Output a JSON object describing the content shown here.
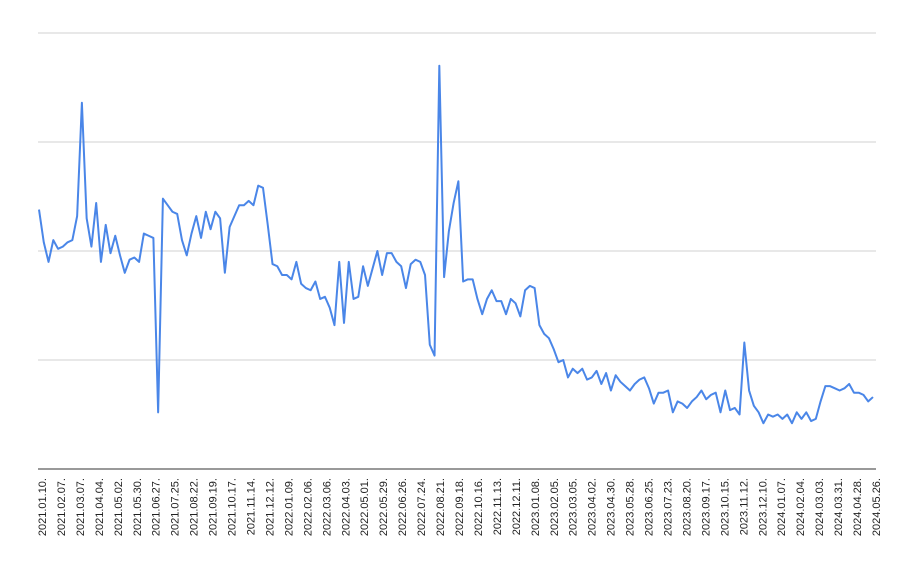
{
  "chart_data": {
    "type": "line",
    "title": "",
    "xlabel": "",
    "ylabel": "",
    "ylim": [
      0,
      100
    ],
    "grid": true,
    "legend": "none",
    "colors": {
      "line": "#4a86e8",
      "grid": "#d0d0d0",
      "axis": "#333333"
    },
    "x_ticks": [
      "2021.01.10.",
      "2021.02.07.",
      "2021.03.07.",
      "2021.04.04.",
      "2021.05.02.",
      "2021.05.30.",
      "2021.06.27.",
      "2021.07.25.",
      "2021.08.22.",
      "2021.09.19.",
      "2021.10.17.",
      "2021.11.14.",
      "2021.12.12.",
      "2022.01.09.",
      "2022.02.06.",
      "2022.03.06.",
      "2022.04.03.",
      "2022.05.01.",
      "2022.05.29.",
      "2022.06.26.",
      "2022.07.24.",
      "2022.08.21.",
      "2022.09.18.",
      "2022.10.16.",
      "2022.11.13.",
      "2022.12.11.",
      "2023.01.08.",
      "2023.02.05.",
      "2023.03.05.",
      "2023.04.02.",
      "2023.04.30.",
      "2023.05.28.",
      "2023.06.25.",
      "2023.07.23.",
      "2023.08.20.",
      "2023.09.17.",
      "2023.10.15.",
      "2023.11.12.",
      "2023.12.10.",
      "2024.01.07.",
      "2024.02.04.",
      "2024.03.03.",
      "2024.03.31.",
      "2024.04.28.",
      "2024.05.26."
    ],
    "series": [
      {
        "values": [
          59.5,
          52,
          47.5,
          52.5,
          50.5,
          51,
          52,
          52.5,
          58,
          84,
          57.5,
          51,
          61,
          47.5,
          56,
          49.5,
          53.5,
          49,
          45,
          48,
          48.5,
          47.5,
          54,
          53.5,
          53,
          13,
          62,
          60.5,
          59,
          58.5,
          52.5,
          49,
          54,
          58,
          53,
          59,
          55,
          59,
          57.5,
          45,
          55.5,
          58,
          60.5,
          60.5,
          61.5,
          60.5,
          65,
          64.5,
          56,
          47,
          46.5,
          44.5,
          44.5,
          43.5,
          47.5,
          42.5,
          41.5,
          41,
          43,
          39,
          39.5,
          37,
          33,
          47.5,
          33.5,
          47.5,
          39,
          39.5,
          46.5,
          42,
          46,
          50,
          44.5,
          49.5,
          49.5,
          47.5,
          46.5,
          41.5,
          47,
          48,
          47.5,
          44.5,
          28.5,
          26,
          92.5,
          44,
          54.5,
          61,
          66,
          43,
          43.5,
          43.5,
          39,
          35.5,
          39,
          41,
          38.5,
          38.5,
          35.5,
          39,
          38,
          35,
          41,
          42,
          41.5,
          33,
          31,
          30,
          27.5,
          24.5,
          25,
          21,
          23,
          22,
          23,
          20.5,
          21,
          22.5,
          19.5,
          22,
          18,
          21.5,
          20,
          19,
          18,
          19.5,
          20.5,
          21,
          18.5,
          15,
          17.5,
          17.5,
          18,
          13,
          15.5,
          15,
          14,
          15.5,
          16.5,
          18,
          16,
          17,
          17.5,
          13,
          18,
          13.5,
          14,
          12.5,
          29,
          18,
          14.5,
          13,
          10.5,
          12.5,
          12,
          12.5,
          11.5,
          12.5,
          10.5,
          13,
          11.5,
          13,
          11,
          11.5,
          15.5,
          19,
          19,
          18.5,
          18,
          18.5,
          19.5,
          17.5,
          17.5,
          17,
          15.5,
          16.5
        ]
      }
    ]
  }
}
